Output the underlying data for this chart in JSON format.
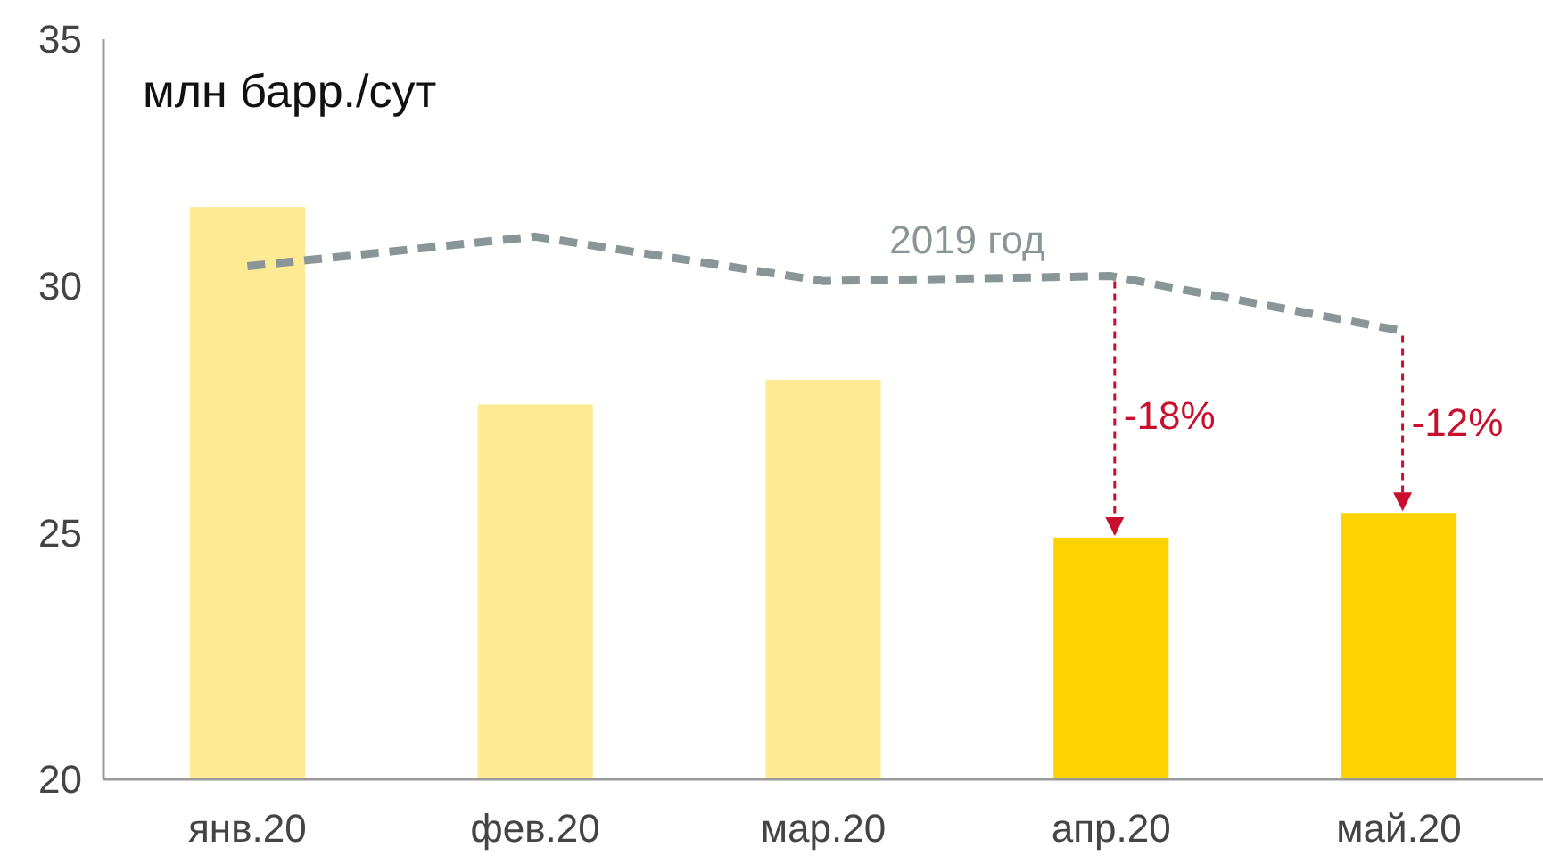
{
  "chart_data": {
    "type": "bar",
    "ylabel": "млн барр./сут",
    "categories": [
      "янв.20",
      "фев.20",
      "мар.20",
      "апр.20",
      "май.20"
    ],
    "series": [
      {
        "colors": [
          "#feea93",
          "#feea93",
          "#feea93",
          "#ffd200",
          "#ffd200"
        ],
        "values": [
          31.6,
          27.6,
          28.1,
          24.9,
          25.4
        ]
      },
      {
        "type": "line",
        "name": "2019 год",
        "color": "#8a9598",
        "line_style": "dashed",
        "values": [
          30.4,
          31.0,
          30.1,
          30.2,
          29.1
        ]
      }
    ],
    "ylim": [
      20,
      35
    ],
    "yticks": [
      20,
      25,
      30,
      35
    ],
    "grid": false,
    "marker": "none",
    "annotations": [
      {
        "text": "-18%",
        "x": "апр.20",
        "y": 24.9
      },
      {
        "text": "-12%",
        "x": "май.20",
        "y": 25.4
      }
    ]
  }
}
